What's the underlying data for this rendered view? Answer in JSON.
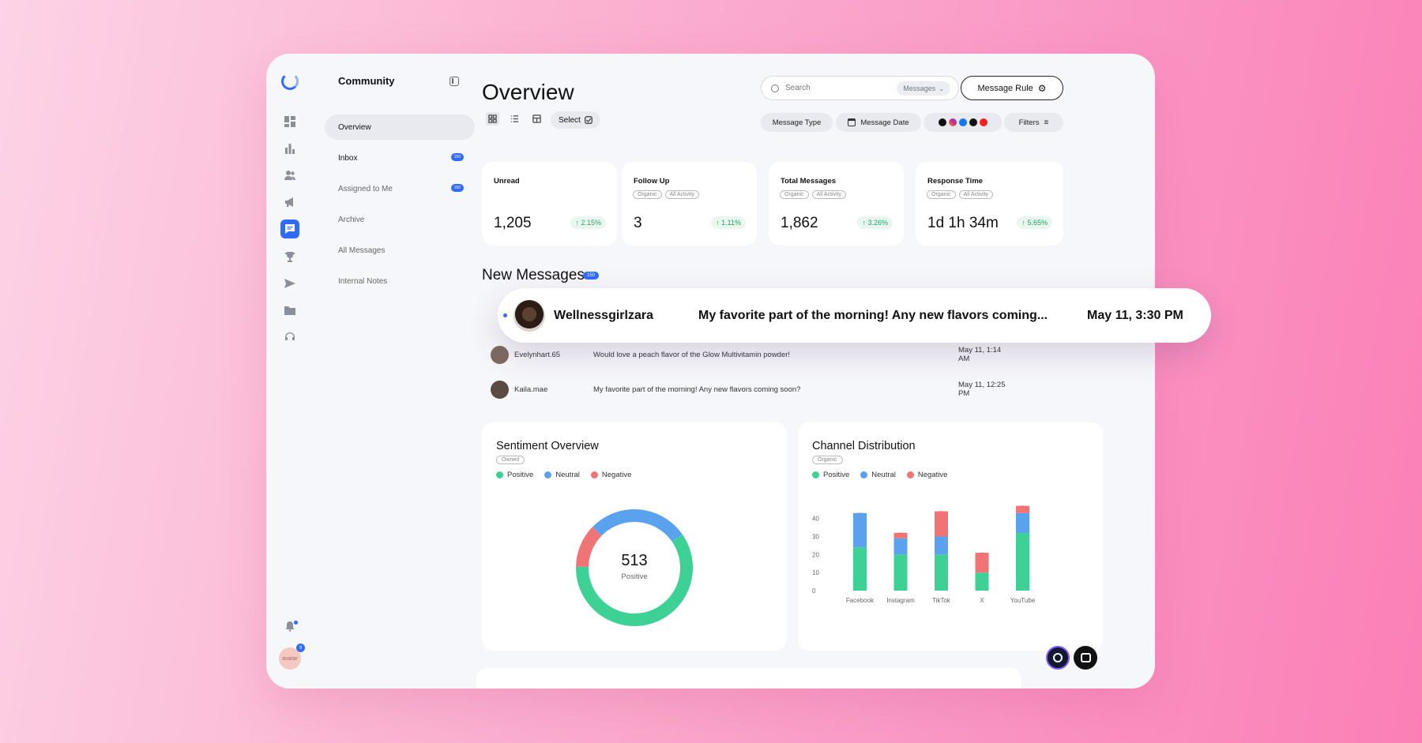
{
  "sidebar": {
    "title": "Community",
    "items": [
      {
        "label": "Overview"
      },
      {
        "label": "Inbox",
        "badge": "150"
      },
      {
        "label": "Assigned to Me",
        "badge": "150"
      },
      {
        "label": "Archive"
      },
      {
        "label": "All Messages"
      },
      {
        "label": "Internal Notes"
      }
    ],
    "avatar_text": "avatar",
    "avatar_badge": "9"
  },
  "header": {
    "title": "Overview",
    "select_label": "Select",
    "search_placeholder": "Search",
    "search_scope": "Messages",
    "message_rule_label": "Message Rule",
    "message_type_label": "Message Type",
    "message_date_label": "Message Date",
    "filters_label": "Filters"
  },
  "colors": {
    "accent": "#2f6bff",
    "positive": "#3dd196",
    "neutral": "#5aa2ee",
    "negative": "#f07476",
    "delta_up": "#1fa36b"
  },
  "kpis": [
    {
      "title": "Unread",
      "value": "1,205",
      "delta": "2.15%",
      "tags": []
    },
    {
      "title": "Follow Up",
      "value": "3",
      "delta": "1.11%",
      "tags": [
        "Organic",
        "All Activity"
      ]
    },
    {
      "title": "Total Messages",
      "value": "1,862",
      "delta": "3.26%",
      "tags": [
        "Organic",
        "All Activity"
      ]
    },
    {
      "title": "Response Time",
      "value": "1d 1h 34m",
      "delta": "5.65%",
      "tags": [
        "Organic",
        "All Activity"
      ]
    }
  ],
  "new_messages": {
    "title": "New Messages",
    "badge": "150",
    "highlighted": {
      "name": "Wellnessgirlzara",
      "text": "My favorite part of the morning! Any new flavors coming...",
      "date": "May 11, 3:30 PM"
    },
    "rows": [
      {
        "name": "Evelynhart.65",
        "text": "Would love a peach flavor of the Glow Multivitamin powder!",
        "date": "May 11, 1:14 AM"
      },
      {
        "name": "Kaila.mae",
        "text": "My favorite part of the morning! Any new flavors coming soon?",
        "date": "May 11, 12:25 PM"
      }
    ]
  },
  "sentiment": {
    "title": "Sentiment Overview",
    "tag": "Owned",
    "legend": [
      "Positive",
      "Neutral",
      "Negative"
    ],
    "center_value": "513",
    "center_label": "Positive"
  },
  "channel": {
    "title": "Channel Distribution",
    "tag": "Organic",
    "legend": [
      "Positive",
      "Neutral",
      "Negative"
    ]
  },
  "chart_data": [
    {
      "type": "pie",
      "title": "Sentiment Overview",
      "labels": [
        "Positive",
        "Neutral",
        "Negative"
      ],
      "values": [
        60,
        28,
        12
      ]
    },
    {
      "type": "bar",
      "title": "Channel Distribution",
      "stacked": true,
      "categories": [
        "Facebook",
        "Instagram",
        "TikTok",
        "X",
        "YouTube"
      ],
      "series": [
        {
          "name": "Positive",
          "values": [
            24,
            20,
            20,
            10,
            32
          ]
        },
        {
          "name": "Neutral",
          "values": [
            19,
            9,
            10,
            0,
            11
          ]
        },
        {
          "name": "Negative",
          "values": [
            0,
            3,
            14,
            11,
            4
          ]
        }
      ],
      "yticks": [
        0,
        10,
        20,
        30,
        40
      ],
      "ylim": [
        0,
        46
      ]
    }
  ]
}
